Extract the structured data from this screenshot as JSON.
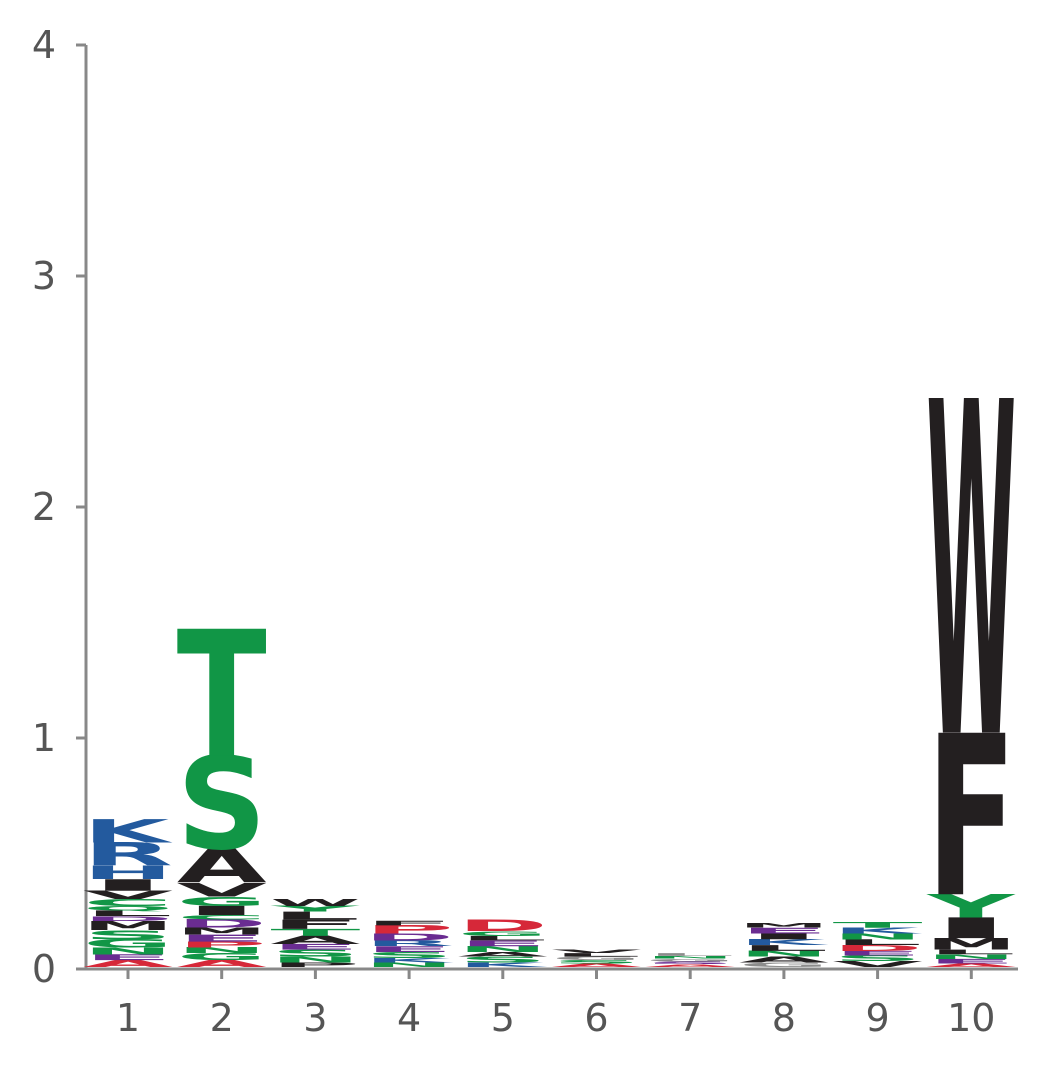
{
  "chart_data": {
    "type": "sequence-logo",
    "title": "",
    "xlabel": "",
    "ylabel": "",
    "ylim": [
      0,
      4
    ],
    "yticks": [
      "0",
      "1",
      "2",
      "3",
      "4"
    ],
    "positions": [
      "1",
      "2",
      "3",
      "4",
      "5",
      "6",
      "7",
      "8",
      "9",
      "10"
    ],
    "colors": {
      "blue": "#235a9e",
      "green": "#119646",
      "black": "#231f20",
      "red": "#d62839",
      "purple": "#6a2c91",
      "gray": "#8c8c8c"
    },
    "stacks": [
      [
        {
          "letter": "A",
          "height": 0.03,
          "color": "red"
        },
        {
          "letter": "E",
          "height": 0.025,
          "color": "purple"
        },
        {
          "letter": "N",
          "height": 0.03,
          "color": "green"
        },
        {
          "letter": "G",
          "height": 0.035,
          "color": "green"
        },
        {
          "letter": "S",
          "height": 0.04,
          "color": "green"
        },
        {
          "letter": "M",
          "height": 0.04,
          "color": "black"
        },
        {
          "letter": "D",
          "height": 0.02,
          "color": "purple"
        },
        {
          "letter": "L",
          "height": 0.025,
          "color": "black"
        },
        {
          "letter": "Q",
          "height": 0.02,
          "color": "green"
        },
        {
          "letter": "C",
          "height": 0.03,
          "color": "green"
        },
        {
          "letter": "V",
          "height": 0.035,
          "color": "black"
        },
        {
          "letter": "I",
          "height": 0.05,
          "color": "black"
        },
        {
          "letter": "H",
          "height": 0.06,
          "color": "blue"
        },
        {
          "letter": "R",
          "height": 0.1,
          "color": "blue"
        },
        {
          "letter": "K",
          "height": 0.1,
          "color": "blue"
        }
      ],
      [
        {
          "letter": "A",
          "height": 0.03,
          "color": "red"
        },
        {
          "letter": "G",
          "height": 0.03,
          "color": "green"
        },
        {
          "letter": "N",
          "height": 0.025,
          "color": "green"
        },
        {
          "letter": "P",
          "height": 0.025,
          "color": "red"
        },
        {
          "letter": "E",
          "height": 0.03,
          "color": "purple"
        },
        {
          "letter": "M",
          "height": 0.03,
          "color": "black"
        },
        {
          "letter": "D",
          "height": 0.035,
          "color": "purple"
        },
        {
          "letter": "C",
          "height": 0.02,
          "color": "green"
        },
        {
          "letter": "I",
          "height": 0.04,
          "color": "black"
        },
        {
          "letter": "G",
          "height": 0.04,
          "color": "green"
        },
        {
          "letter": "V",
          "height": 0.06,
          "color": "black"
        },
        {
          "letter": "A",
          "height": 0.15,
          "color": "black"
        },
        {
          "letter": "S",
          "height": 0.4,
          "color": "green"
        },
        {
          "letter": "T",
          "height": 0.55,
          "color": "green"
        }
      ],
      [
        {
          "letter": "P",
          "height": 0.02,
          "color": "black"
        },
        {
          "letter": "N",
          "height": 0.025,
          "color": "green"
        },
        {
          "letter": "S",
          "height": 0.03,
          "color": "green"
        },
        {
          "letter": "E",
          "height": 0.025,
          "color": "purple"
        },
        {
          "letter": "A",
          "height": 0.035,
          "color": "black"
        },
        {
          "letter": "T",
          "height": 0.03,
          "color": "green"
        },
        {
          "letter": "F",
          "height": 0.04,
          "color": "black"
        },
        {
          "letter": "L",
          "height": 0.035,
          "color": "black"
        },
        {
          "letter": "Y",
          "height": 0.025,
          "color": "green"
        },
        {
          "letter": "W",
          "height": 0.03,
          "color": "black"
        }
      ],
      [
        {
          "letter": "N",
          "height": 0.02,
          "color": "green"
        },
        {
          "letter": "K",
          "height": 0.02,
          "color": "blue"
        },
        {
          "letter": "S",
          "height": 0.025,
          "color": "green"
        },
        {
          "letter": "E",
          "height": 0.025,
          "color": "purple"
        },
        {
          "letter": "R",
          "height": 0.025,
          "color": "blue"
        },
        {
          "letter": "D",
          "height": 0.03,
          "color": "purple"
        },
        {
          "letter": "P",
          "height": 0.035,
          "color": "red"
        },
        {
          "letter": "F",
          "height": 0.02,
          "color": "black"
        }
      ],
      [
        {
          "letter": "K",
          "height": 0.02,
          "color": "blue"
        },
        {
          "letter": "S",
          "height": 0.025,
          "color": "green"
        },
        {
          "letter": "A",
          "height": 0.02,
          "color": "black"
        },
        {
          "letter": "N",
          "height": 0.025,
          "color": "green"
        },
        {
          "letter": "E",
          "height": 0.025,
          "color": "purple"
        },
        {
          "letter": "L",
          "height": 0.02,
          "color": "black"
        },
        {
          "letter": "G",
          "height": 0.02,
          "color": "green"
        },
        {
          "letter": "D",
          "height": 0.05,
          "color": "red"
        }
      ],
      [
        {
          "letter": "A",
          "height": 0.015,
          "color": "red"
        },
        {
          "letter": "S",
          "height": 0.015,
          "color": "green"
        },
        {
          "letter": "G",
          "height": 0.015,
          "color": "gray"
        },
        {
          "letter": "L",
          "height": 0.015,
          "color": "black"
        },
        {
          "letter": "V",
          "height": 0.015,
          "color": "black"
        }
      ],
      [
        {
          "letter": "A",
          "height": 0.012,
          "color": "red"
        },
        {
          "letter": "S",
          "height": 0.012,
          "color": "purple"
        },
        {
          "letter": "G",
          "height": 0.012,
          "color": "gray"
        },
        {
          "letter": "N",
          "height": 0.012,
          "color": "green"
        },
        {
          "letter": "L",
          "height": 0.012,
          "color": "gray"
        }
      ],
      [
        {
          "letter": "G",
          "height": 0.02,
          "color": "gray"
        },
        {
          "letter": "A",
          "height": 0.025,
          "color": "black"
        },
        {
          "letter": "N",
          "height": 0.025,
          "color": "green"
        },
        {
          "letter": "L",
          "height": 0.025,
          "color": "black"
        },
        {
          "letter": "K",
          "height": 0.025,
          "color": "blue"
        },
        {
          "letter": "I",
          "height": 0.025,
          "color": "black"
        },
        {
          "letter": "E",
          "height": 0.025,
          "color": "purple"
        },
        {
          "letter": "M",
          "height": 0.02,
          "color": "black"
        }
      ],
      [
        {
          "letter": "V",
          "height": 0.025,
          "color": "black"
        },
        {
          "letter": "S",
          "height": 0.025,
          "color": "green"
        },
        {
          "letter": "E",
          "height": 0.02,
          "color": "purple"
        },
        {
          "letter": "D",
          "height": 0.025,
          "color": "red"
        },
        {
          "letter": "L",
          "height": 0.025,
          "color": "black"
        },
        {
          "letter": "N",
          "height": 0.025,
          "color": "green"
        },
        {
          "letter": "K",
          "height": 0.025,
          "color": "blue"
        },
        {
          "letter": "T",
          "height": 0.025,
          "color": "green"
        }
      ],
      [
        {
          "letter": "A",
          "height": 0.015,
          "color": "red"
        },
        {
          "letter": "E",
          "height": 0.02,
          "color": "purple"
        },
        {
          "letter": "N",
          "height": 0.02,
          "color": "green"
        },
        {
          "letter": "L",
          "height": 0.02,
          "color": "black"
        },
        {
          "letter": "M",
          "height": 0.05,
          "color": "black"
        },
        {
          "letter": "I",
          "height": 0.09,
          "color": "black"
        },
        {
          "letter": "Y",
          "height": 0.1,
          "color": "green"
        },
        {
          "letter": "F",
          "height": 0.7,
          "color": "black"
        },
        {
          "letter": "W",
          "height": 1.45,
          "color": "black"
        }
      ]
    ]
  }
}
